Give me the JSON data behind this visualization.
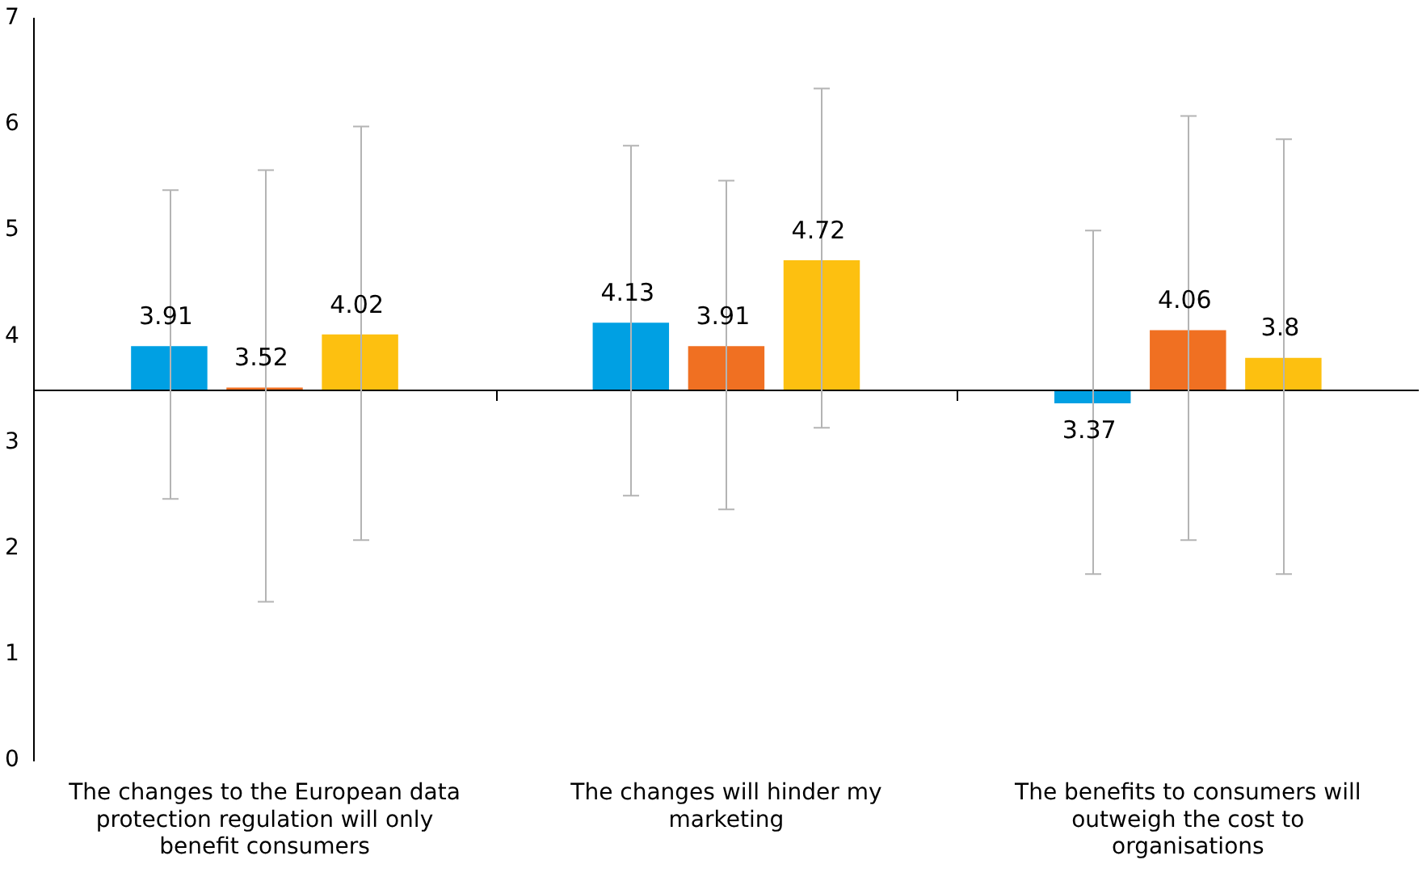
{
  "chart_data": {
    "type": "bar",
    "categories": [
      "The changes to the European data protection regulation will only benefit consumers",
      "The changes will hinder my marketing",
      "The benefits to consumers will outweigh the cost to organisations"
    ],
    "series": [
      {
        "color": "#00a0e3",
        "base": [
          3.5,
          3.5,
          3.5
        ],
        "values": [
          0.41,
          0.63,
          -0.13
        ],
        "value_labels": [
          "3.91",
          "4.13",
          "3.37"
        ],
        "errors": [
          [
            2.47,
            5.38
          ],
          [
            2.5,
            5.8
          ],
          [
            1.76,
            5.0
          ]
        ]
      },
      {
        "color": "#f07022",
        "base": [
          3.5,
          3.5,
          3.5
        ],
        "values": [
          0.02,
          0.41,
          0.56
        ],
        "value_labels": [
          "3.52",
          "3.91",
          "4.06"
        ],
        "errors": [
          [
            1.5,
            5.57
          ],
          [
            2.37,
            5.47
          ],
          [
            2.08,
            6.08
          ]
        ]
      },
      {
        "color": "#fdc010",
        "base": [
          3.5,
          3.5,
          3.5
        ],
        "values": [
          0.52,
          1.22,
          0.3
        ],
        "value_labels": [
          "4.02",
          "4.72",
          "3.8"
        ],
        "errors": [
          [
            2.08,
            5.98
          ],
          [
            3.14,
            6.34
          ],
          [
            1.76,
            5.86
          ]
        ]
      }
    ],
    "ref_lines": [
      {
        "axis": "y",
        "value": 3.5,
        "color": "#000000"
      }
    ],
    "ylim": [
      0,
      7
    ],
    "yticks": [
      0,
      1,
      2,
      3,
      4,
      5,
      6,
      7
    ],
    "grid": false,
    "legend": false
  }
}
